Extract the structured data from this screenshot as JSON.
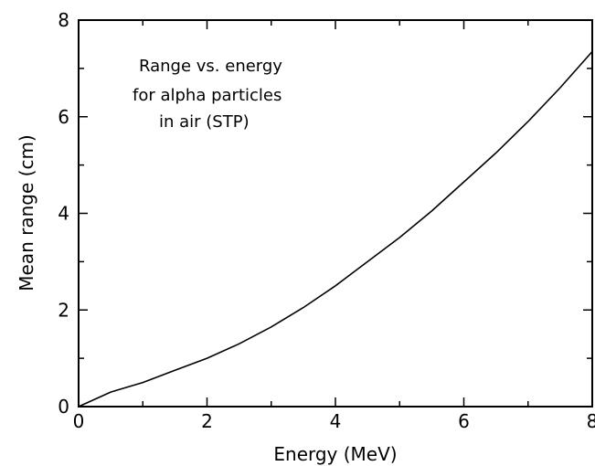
{
  "chart_data": {
    "type": "line",
    "title": "",
    "annotation_lines": [
      "Range vs. energy",
      "for alpha particles",
      "in air (STP)"
    ],
    "xlabel": "Energy (MeV)",
    "ylabel": "Mean range (cm)",
    "xlim": [
      0,
      8
    ],
    "ylim": [
      0,
      8
    ],
    "xticks": [
      0,
      2,
      4,
      6,
      8
    ],
    "yticks": [
      0,
      2,
      4,
      6,
      8
    ],
    "xtick_labels": [
      "0",
      "2",
      "4",
      "6",
      "8"
    ],
    "ytick_labels": [
      "0",
      "2",
      "4",
      "6",
      "8"
    ],
    "grid": false,
    "legend": "none",
    "series": [
      {
        "color": "#000000",
        "x": [
          0,
          0.5,
          1,
          1.5,
          2,
          2.5,
          3,
          3.5,
          4,
          4.5,
          5,
          5.5,
          6,
          6.5,
          7,
          7.5,
          8
        ],
        "y": [
          0,
          0.3,
          0.5,
          0.75,
          1.0,
          1.3,
          1.65,
          2.05,
          2.5,
          3.0,
          3.5,
          4.05,
          4.65,
          5.25,
          5.9,
          6.6,
          7.35
        ]
      }
    ]
  }
}
